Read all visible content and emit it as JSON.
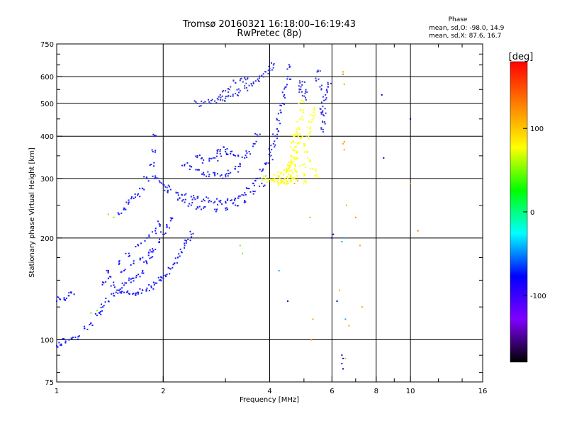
{
  "chart_data": {
    "type": "scatter",
    "title": "Tromsø 20160321 16:18:00–16:19:43",
    "subtitle": "RwPretec (8p)",
    "phase_header": "Phase",
    "phase_stats": [
      "mean, sd,O: -98.0, 14.9",
      "mean, sd,X:  87.6, 16.7"
    ],
    "xlabel": "Frequency [MHz]",
    "ylabel": "Stationary phase Virtual Height [km]",
    "x_scale": "log",
    "y_scale": "log",
    "xlim": [
      1,
      16
    ],
    "ylim": [
      75,
      750
    ],
    "xticks": [
      1,
      2,
      4,
      6,
      8,
      10,
      16
    ],
    "xtick_labels": [
      "1",
      "2",
      "4",
      "6",
      "8",
      "10",
      "16"
    ],
    "x_gridlines": [
      2,
      4,
      6,
      8,
      10
    ],
    "yticks": [
      75,
      100,
      200,
      300,
      400,
      500,
      600,
      750
    ],
    "ytick_labels": [
      "75",
      "100",
      "200",
      "300",
      "400",
      "500",
      "600",
      "750"
    ],
    "y_gridlines": [
      100,
      200,
      300,
      400,
      500,
      600
    ],
    "grid": true,
    "colorbar": {
      "label": "[deg]",
      "range": [
        -180,
        180
      ],
      "ticks": [
        100,
        0,
        -100
      ],
      "tick_labels": [
        "100",
        "0",
        "-100"
      ],
      "colors": [
        "#000000",
        "#8000ff",
        "#0000ff",
        "#00ffff",
        "#00ff00",
        "#ffff00",
        "#ff8000",
        "#ff0000"
      ]
    },
    "series": [
      {
        "color": "#1a1aff",
        "description_points": [
          [
            1.0,
            130
          ],
          [
            1.02,
            132
          ],
          [
            1.05,
            133
          ],
          [
            1.08,
            135
          ],
          [
            1.1,
            138
          ],
          [
            1.0,
            96
          ],
          [
            1.03,
            97
          ],
          [
            1.06,
            99
          ],
          [
            1.1,
            101
          ],
          [
            1.15,
            102
          ],
          [
            1.2,
            108
          ],
          [
            1.25,
            112
          ],
          [
            1.3,
            118
          ],
          [
            1.33,
            121
          ],
          [
            1.35,
            125
          ],
          [
            1.4,
            130
          ],
          [
            1.45,
            135
          ],
          [
            1.5,
            140
          ],
          [
            1.55,
            145
          ],
          [
            1.6,
            150
          ],
          [
            1.65,
            152
          ],
          [
            1.7,
            156
          ],
          [
            1.75,
            160
          ],
          [
            1.8,
            168
          ],
          [
            1.85,
            175
          ],
          [
            1.9,
            185
          ],
          [
            1.95,
            195
          ],
          [
            2.0,
            205
          ],
          [
            2.05,
            215
          ],
          [
            2.1,
            225
          ],
          [
            1.35,
            148
          ],
          [
            1.4,
            152
          ],
          [
            1.45,
            145
          ],
          [
            1.5,
            140
          ],
          [
            1.55,
            138
          ],
          [
            1.6,
            137
          ],
          [
            1.65,
            137
          ],
          [
            1.7,
            138
          ],
          [
            1.75,
            140
          ],
          [
            1.8,
            142
          ],
          [
            1.85,
            144
          ],
          [
            1.9,
            147
          ],
          [
            1.95,
            150
          ],
          [
            2.0,
            152
          ],
          [
            2.05,
            156
          ],
          [
            2.1,
            162
          ],
          [
            2.15,
            168
          ],
          [
            2.2,
            175
          ],
          [
            2.25,
            182
          ],
          [
            2.3,
            190
          ],
          [
            2.35,
            198
          ],
          [
            2.4,
            205
          ],
          [
            1.4,
            160
          ],
          [
            1.5,
            170
          ],
          [
            1.6,
            180
          ],
          [
            1.7,
            190
          ],
          [
            1.8,
            200
          ],
          [
            1.9,
            210
          ],
          [
            1.95,
            220
          ],
          [
            1.55,
            160
          ],
          [
            1.65,
            168
          ],
          [
            1.75,
            175
          ],
          [
            1.85,
            182
          ],
          [
            1.5,
            235
          ],
          [
            1.55,
            245
          ],
          [
            1.6,
            255
          ],
          [
            1.65,
            262
          ],
          [
            1.7,
            270
          ],
          [
            1.75,
            280
          ],
          [
            1.8,
            300
          ],
          [
            1.85,
            330
          ],
          [
            1.87,
            360
          ],
          [
            1.9,
            400
          ]
        ]
      },
      {
        "color": "#2222ee",
        "description_points": [
          [
            1.9,
            305
          ],
          [
            1.95,
            295
          ],
          [
            2.0,
            288
          ],
          [
            2.05,
            282
          ],
          [
            2.1,
            278
          ],
          [
            2.2,
            272
          ],
          [
            2.3,
            268
          ],
          [
            2.4,
            265
          ],
          [
            2.5,
            262
          ],
          [
            2.6,
            260
          ],
          [
            2.7,
            258
          ],
          [
            2.8,
            256
          ],
          [
            2.9,
            255
          ],
          [
            3.0,
            256
          ],
          [
            3.1,
            258
          ],
          [
            3.2,
            262
          ],
          [
            3.3,
            266
          ],
          [
            3.4,
            272
          ],
          [
            3.5,
            280
          ],
          [
            3.6,
            290
          ],
          [
            3.7,
            300
          ],
          [
            3.8,
            315
          ],
          [
            3.9,
            330
          ],
          [
            4.0,
            348
          ],
          [
            4.05,
            365
          ],
          [
            4.1,
            380
          ],
          [
            4.15,
            400
          ],
          [
            4.2,
            420
          ],
          [
            4.25,
            445
          ],
          [
            4.3,
            470
          ],
          [
            4.35,
            500
          ],
          [
            4.4,
            530
          ],
          [
            4.45,
            560
          ],
          [
            4.5,
            600
          ],
          [
            4.55,
            640
          ],
          [
            2.2,
            260
          ],
          [
            2.3,
            255
          ],
          [
            2.4,
            250
          ],
          [
            2.5,
            247
          ],
          [
            2.6,
            245
          ],
          [
            2.8,
            243
          ],
          [
            3.0,
            245
          ],
          [
            3.2,
            250
          ],
          [
            3.4,
            258
          ],
          [
            3.6,
            270
          ],
          [
            3.8,
            290
          ],
          [
            2.3,
            330
          ],
          [
            2.4,
            325
          ],
          [
            2.5,
            318
          ],
          [
            2.6,
            312
          ],
          [
            2.7,
            308
          ],
          [
            2.8,
            306
          ],
          [
            2.9,
            305
          ],
          [
            3.0,
            307
          ],
          [
            3.1,
            312
          ],
          [
            3.2,
            320
          ],
          [
            3.3,
            330
          ],
          [
            3.4,
            345
          ],
          [
            3.5,
            360
          ],
          [
            3.6,
            380
          ],
          [
            3.7,
            400
          ],
          [
            2.5,
            350
          ],
          [
            2.6,
            340
          ],
          [
            2.7,
            338
          ],
          [
            2.8,
            345
          ],
          [
            2.9,
            355
          ],
          [
            3.0,
            365
          ],
          [
            2.9,
            365
          ],
          [
            3.0,
            360
          ],
          [
            3.1,
            355
          ],
          [
            3.2,
            350
          ]
        ]
      },
      {
        "color": "#3333dd",
        "description_points": [
          [
            2.5,
            500
          ],
          [
            2.6,
            502
          ],
          [
            2.7,
            505
          ],
          [
            2.8,
            508
          ],
          [
            2.9,
            512
          ],
          [
            3.0,
            518
          ],
          [
            3.1,
            525
          ],
          [
            3.2,
            535
          ],
          [
            3.3,
            545
          ],
          [
            3.4,
            555
          ],
          [
            3.5,
            565
          ],
          [
            3.6,
            578
          ],
          [
            3.7,
            590
          ],
          [
            3.8,
            605
          ],
          [
            3.9,
            620
          ],
          [
            4.0,
            635
          ],
          [
            4.1,
            650
          ],
          [
            2.9,
            530
          ],
          [
            3.0,
            545
          ],
          [
            3.1,
            560
          ],
          [
            3.2,
            575
          ],
          [
            3.3,
            585
          ],
          [
            3.4,
            595
          ],
          [
            5.6,
            470
          ],
          [
            5.65,
            490
          ],
          [
            5.7,
            510
          ],
          [
            5.75,
            530
          ],
          [
            5.8,
            550
          ],
          [
            5.85,
            570
          ],
          [
            5.6,
            420
          ],
          [
            5.65,
            440
          ],
          [
            5.7,
            460
          ],
          [
            5.55,
            560
          ],
          [
            5.5,
            590
          ],
          [
            5.45,
            620
          ],
          [
            4.85,
            540
          ],
          [
            4.9,
            560
          ],
          [
            4.95,
            580
          ],
          [
            5.05,
            520
          ],
          [
            5.1,
            540
          ]
        ]
      },
      {
        "color": "#ffff00",
        "description_points": [
          [
            3.9,
            300
          ],
          [
            4.0,
            298
          ],
          [
            4.1,
            296
          ],
          [
            4.2,
            295
          ],
          [
            4.3,
            296
          ],
          [
            4.4,
            298
          ],
          [
            4.5,
            300
          ],
          [
            4.6,
            305
          ],
          [
            4.65,
            312
          ],
          [
            4.7,
            320
          ],
          [
            4.72,
            330
          ],
          [
            4.75,
            345
          ],
          [
            4.77,
            360
          ],
          [
            4.8,
            380
          ],
          [
            4.82,
            400
          ],
          [
            4.85,
            420
          ],
          [
            4.87,
            450
          ],
          [
            4.9,
            480
          ],
          [
            4.92,
            510
          ],
          [
            4.5,
            315
          ],
          [
            4.55,
            325
          ],
          [
            4.6,
            335
          ],
          [
            4.62,
            350
          ],
          [
            4.65,
            365
          ],
          [
            4.68,
            385
          ],
          [
            4.7,
            400
          ],
          [
            4.3,
            290
          ],
          [
            4.4,
            292
          ],
          [
            4.5,
            294
          ],
          [
            4.6,
            296
          ],
          [
            4.7,
            300
          ],
          [
            5.1,
            360
          ],
          [
            5.2,
            340
          ],
          [
            5.3,
            320
          ],
          [
            5.4,
            305
          ],
          [
            5.0,
            380
          ],
          [
            4.95,
            400
          ],
          [
            5.15,
            400
          ],
          [
            5.2,
            420
          ],
          [
            5.25,
            440
          ],
          [
            5.3,
            460
          ],
          [
            5.35,
            480
          ],
          [
            4.95,
            330
          ],
          [
            5.0,
            310
          ],
          [
            5.05,
            295
          ],
          [
            4.2,
            305
          ],
          [
            4.3,
            310
          ],
          [
            4.4,
            318
          ],
          [
            4.5,
            328
          ],
          [
            4.6,
            340
          ]
        ]
      },
      {
        "color": "#ffa500",
        "description_points": [
          [
            6.45,
            620
          ],
          [
            6.5,
            570
          ],
          [
            6.45,
            380
          ],
          [
            6.5,
            365
          ],
          [
            5.2,
            230
          ],
          [
            6.6,
            250
          ],
          [
            4.7,
            290
          ],
          [
            4.8,
            295
          ],
          [
            7.2,
            190
          ],
          [
            6.3,
            140
          ],
          [
            6.55,
            88
          ],
          [
            7.3,
            125
          ],
          [
            6.7,
            110
          ],
          [
            5.3,
            115
          ]
        ]
      },
      {
        "color": "#ff7f00",
        "description_points": [
          [
            6.45,
            610
          ],
          [
            6.5,
            385
          ],
          [
            5.25,
            100
          ],
          [
            7.0,
            230
          ],
          [
            10.5,
            210
          ],
          [
            10.0,
            290
          ]
        ]
      },
      {
        "color": "#66ff00",
        "description_points": [
          [
            1.25,
            120
          ],
          [
            1.3,
            122
          ],
          [
            1.4,
            235
          ],
          [
            1.45,
            230
          ],
          [
            3.3,
            190
          ],
          [
            3.35,
            180
          ],
          [
            3.8,
            300
          ],
          [
            3.9,
            305
          ]
        ]
      },
      {
        "color": "#00aaff",
        "description_points": [
          [
            6.4,
            195
          ],
          [
            6.55,
            115
          ],
          [
            6.5,
            200
          ],
          [
            4.25,
            160
          ]
        ]
      },
      {
        "color": "#0000cc",
        "description_points": [
          [
            4.5,
            130
          ],
          [
            6.2,
            130
          ],
          [
            6.4,
            85
          ],
          [
            6.45,
            82
          ],
          [
            8.3,
            530
          ],
          [
            8.4,
            345
          ],
          [
            10.0,
            450
          ],
          [
            6.0,
            200
          ],
          [
            6.05,
            205
          ],
          [
            6.4,
            90
          ],
          [
            6.45,
            88
          ]
        ]
      }
    ]
  }
}
